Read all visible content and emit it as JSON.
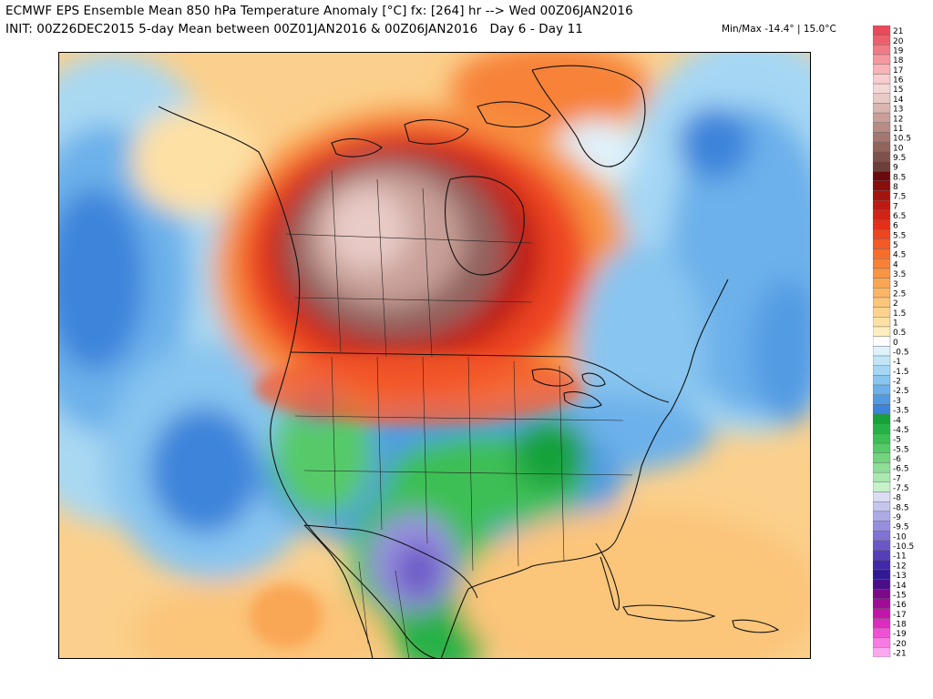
{
  "header": {
    "title_line1": "ECMWF EPS Ensemble Mean 850 hPa Temperature Anomaly [°C] fx: [264] hr --> Wed 00Z06JAN2016",
    "title_line2": "INIT: 00Z26DEC2015 5-day Mean between 00Z01JAN2016 & 00Z06JAN2016   Day 6 - Day 11",
    "minmax": "Min/Max -14.4° | 15.0°C"
  },
  "legend": {
    "levels": [
      {
        "label": "21",
        "color": "#e84a5a"
      },
      {
        "label": "20",
        "color": "#ec606e"
      },
      {
        "label": "19",
        "color": "#f07b86"
      },
      {
        "label": "18",
        "color": "#f4989f"
      },
      {
        "label": "17",
        "color": "#f7b3b7"
      },
      {
        "label": "16",
        "color": "#facdd0"
      },
      {
        "label": "15",
        "color": "#f3d8d6"
      },
      {
        "label": "14",
        "color": "#e8cac6"
      },
      {
        "label": "13",
        "color": "#dbb5b0"
      },
      {
        "label": "12",
        "color": "#c9a099"
      },
      {
        "label": "11",
        "color": "#b88b84"
      },
      {
        "label": "10.5",
        "color": "#a47770"
      },
      {
        "label": "10",
        "color": "#92645e"
      },
      {
        "label": "9.5",
        "color": "#7e524c"
      },
      {
        "label": "9",
        "color": "#6b3f3a"
      },
      {
        "label": "8.5",
        "color": "#6a0a0a"
      },
      {
        "label": "8",
        "color": "#8a0e0c"
      },
      {
        "label": "7.5",
        "color": "#a4140f"
      },
      {
        "label": "7",
        "color": "#bc1a12"
      },
      {
        "label": "6.5",
        "color": "#d22416"
      },
      {
        "label": "6",
        "color": "#e4301a"
      },
      {
        "label": "5.5",
        "color": "#ee4420"
      },
      {
        "label": "5",
        "color": "#f45a26"
      },
      {
        "label": "4.5",
        "color": "#f66e2e"
      },
      {
        "label": "4",
        "color": "#f78237"
      },
      {
        "label": "3.5",
        "color": "#f89544"
      },
      {
        "label": "3",
        "color": "#f9a654"
      },
      {
        "label": "2.5",
        "color": "#fab666"
      },
      {
        "label": "2",
        "color": "#fbc57a"
      },
      {
        "label": "1.5",
        "color": "#fcd38e"
      },
      {
        "label": "1",
        "color": "#fde0a4"
      },
      {
        "label": "0.5",
        "color": "#feedbe"
      },
      {
        "label": "0",
        "color": "#ffffff"
      },
      {
        "label": "-0.5",
        "color": "#dff2fb"
      },
      {
        "label": "-1",
        "color": "#c2e6f8"
      },
      {
        "label": "-1.5",
        "color": "#a5d7f4"
      },
      {
        "label": "-2",
        "color": "#88c5ef"
      },
      {
        "label": "-2.5",
        "color": "#6cb1ea"
      },
      {
        "label": "-3",
        "color": "#529be3"
      },
      {
        "label": "-3.5",
        "color": "#3c84da"
      },
      {
        "label": "-4",
        "color": "#17a13a"
      },
      {
        "label": "-4.5",
        "color": "#26b146"
      },
      {
        "label": "-5",
        "color": "#3cbf55"
      },
      {
        "label": "-5.5",
        "color": "#56ca68"
      },
      {
        "label": "-6",
        "color": "#72d47e"
      },
      {
        "label": "-6.5",
        "color": "#8ede97"
      },
      {
        "label": "-7",
        "color": "#aae8b0"
      },
      {
        "label": "-7.5",
        "color": "#c6f1ca"
      },
      {
        "label": "-8",
        "color": "#dcdcf4"
      },
      {
        "label": "-8.5",
        "color": "#c5c5ee"
      },
      {
        "label": "-9",
        "color": "#aeaae6"
      },
      {
        "label": "-9.5",
        "color": "#978fdd"
      },
      {
        "label": "-10",
        "color": "#8173d2"
      },
      {
        "label": "-10.5",
        "color": "#6b58c6"
      },
      {
        "label": "-11",
        "color": "#563eb8"
      },
      {
        "label": "-12",
        "color": "#4128a8"
      },
      {
        "label": "-13",
        "color": "#301a95"
      },
      {
        "label": "-14",
        "color": "#4a0f86"
      },
      {
        "label": "-15",
        "color": "#7a0a8a"
      },
      {
        "label": "-16",
        "color": "#a00c98"
      },
      {
        "label": "-17",
        "color": "#c216aa"
      },
      {
        "label": "-18",
        "color": "#dc2ebe"
      },
      {
        "label": "-19",
        "color": "#ee52d2"
      },
      {
        "label": "-20",
        "color": "#f67ce2"
      },
      {
        "label": "-21",
        "color": "#fba8ef"
      }
    ]
  }
}
